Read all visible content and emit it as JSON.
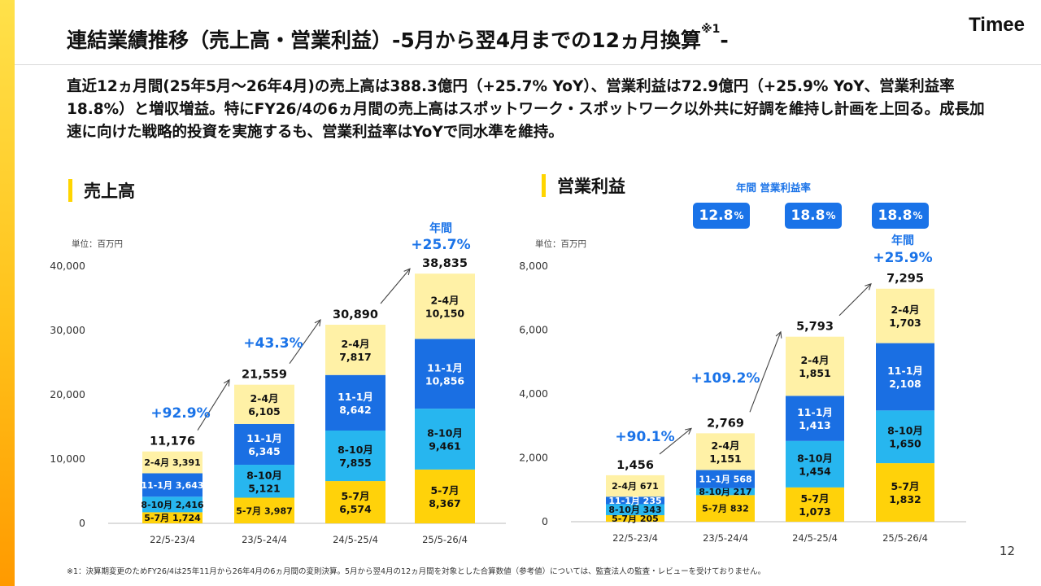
{
  "header": {
    "title": "連結業績推移（売上高・営業利益）-5月から翌4月までの12ヵ月換算",
    "title_note": "※1",
    "title_tail": "-",
    "logo": "Timee"
  },
  "summary": "直近12ヵ月間(25年5月〜26年4月)の売上高は388.3億円（+25.7% YoY）、営業利益は72.9億円（+25.9% YoY、営業利益率18.8%）と増収増益。特にFY26/4の6ヵ月間の売上高はスポットワーク・スポットワーク以外共に好調を維持し計画を上回る。成長加速に向けた戦略的投資を実施するも、営業利益率はYoYで同水準を維持。",
  "footnote": "※1：決算期変更のためFY26/4は25年11月から26年4月の6ヵ月間の変則決算。5月から翌4月の12ヵ月間を対象とした合算数値（参考値）については、監査法人の監査・レビューを受けておりません。",
  "page_number": "12",
  "colors": {
    "q1": "#ffd20a",
    "q2": "#27b6ef",
    "q3": "#1a6fe3",
    "q4": "#fff1a6",
    "accent": "#1a73e8",
    "side": "#ffc21a"
  },
  "chart_data": [
    {
      "type": "bar",
      "stacked": true,
      "title": "売上高",
      "unit": "単位：百万円",
      "categories": [
        "22/5-23/4",
        "23/5-24/4",
        "24/5-25/4",
        "25/5-26/4"
      ],
      "series": [
        {
          "name": "5-7月",
          "values": [
            1724,
            3987,
            6574,
            8367
          ]
        },
        {
          "name": "8-10月",
          "values": [
            2416,
            5121,
            7855,
            9461
          ]
        },
        {
          "name": "11-1月",
          "values": [
            3643,
            6345,
            8642,
            10856
          ]
        },
        {
          "name": "2-4月",
          "values": [
            3391,
            6105,
            7817,
            10150
          ]
        }
      ],
      "totals": [
        "11,176",
        "21,559",
        "30,890",
        "38,835"
      ],
      "growth": [
        "+92.9%",
        "+43.3%",
        "+25.7%"
      ],
      "annual_label": "年間",
      "ylim": [
        0,
        40000
      ],
      "yticks": [
        0,
        10000,
        20000,
        30000,
        40000
      ],
      "ytick_labels": [
        "0",
        "10,000",
        "20,000",
        "30,000",
        "40,000"
      ]
    },
    {
      "type": "bar",
      "stacked": true,
      "title": "営業利益",
      "unit": "単位：百万円",
      "categories": [
        "22/5-23/4",
        "23/5-24/4",
        "24/5-25/4",
        "25/5-26/4"
      ],
      "series": [
        {
          "name": "5-7月",
          "values": [
            205,
            832,
            1073,
            1832
          ]
        },
        {
          "name": "8-10月",
          "values": [
            343,
            217,
            1454,
            1650
          ]
        },
        {
          "name": "11-1月",
          "values": [
            235,
            568,
            1413,
            2108
          ]
        },
        {
          "name": "2-4月",
          "values": [
            671,
            1151,
            1851,
            1703
          ]
        }
      ],
      "totals": [
        "1,456",
        "2,769",
        "5,793",
        "7,295"
      ],
      "growth": [
        "+90.1%",
        "+109.2%",
        "+25.9%"
      ],
      "annual_label": "年間",
      "margin_title": "年間 営業利益率",
      "margins": [
        "12.8",
        "18.8",
        "18.8"
      ],
      "margin_unit": "%",
      "ylim": [
        0,
        8000
      ],
      "yticks": [
        0,
        2000,
        4000,
        6000,
        8000
      ],
      "ytick_labels": [
        "0",
        "2,000",
        "4,000",
        "6,000",
        "8,000"
      ]
    }
  ]
}
